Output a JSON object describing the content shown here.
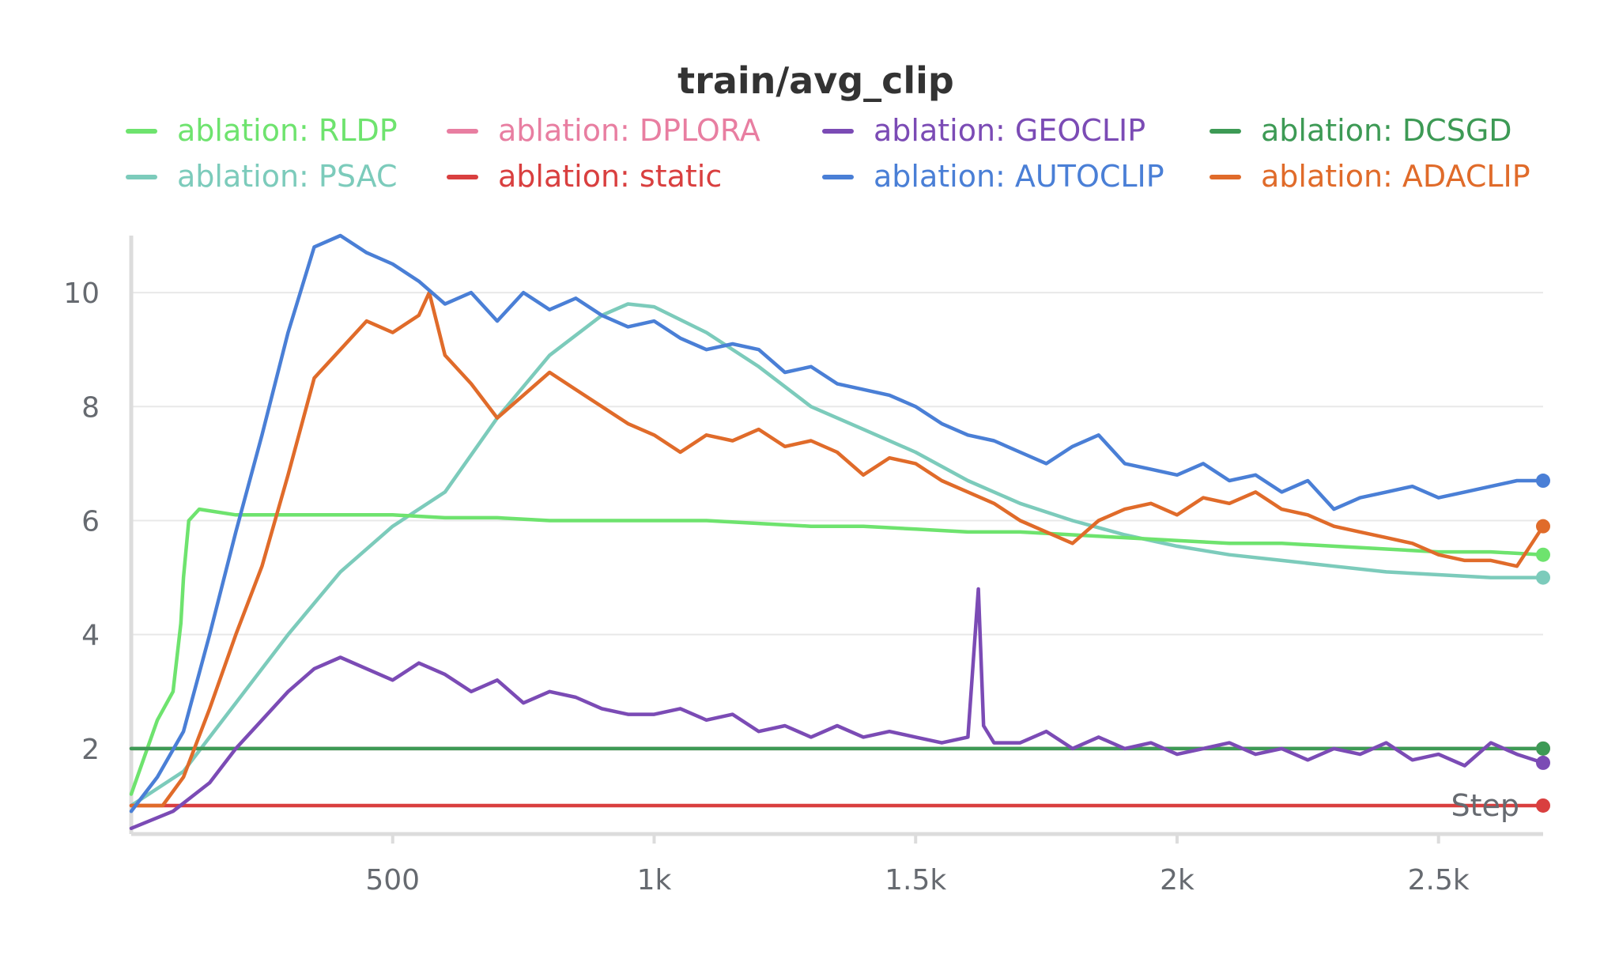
{
  "chart_data": {
    "type": "line",
    "title": "train/avg_clip",
    "xlabel": "Step",
    "ylabel": "",
    "xlim": [
      0,
      2700
    ],
    "ylim": [
      0.5,
      11
    ],
    "xticks": [
      500,
      1000,
      1500,
      2000,
      2500
    ],
    "xtick_labels": [
      "500",
      "1k",
      "1.5k",
      "2k",
      "2.5k"
    ],
    "yticks": [
      2,
      4,
      6,
      8,
      10
    ],
    "ytick_labels": [
      "2",
      "4",
      "6",
      "8",
      "10"
    ],
    "legend_position": "top",
    "series": [
      {
        "name": "ablation: RLDP",
        "color": "#6ee36e",
        "x": [
          0,
          50,
          80,
          95,
          100,
          110,
          130,
          200,
          300,
          400,
          500,
          600,
          700,
          800,
          900,
          1000,
          1100,
          1200,
          1300,
          1400,
          1500,
          1600,
          1700,
          1800,
          1900,
          2000,
          2100,
          2200,
          2300,
          2400,
          2500,
          2600,
          2700
        ],
        "y": [
          1.2,
          2.5,
          3.0,
          4.2,
          5.0,
          6.0,
          6.2,
          6.1,
          6.1,
          6.1,
          6.1,
          6.05,
          6.05,
          6.0,
          6.0,
          6.0,
          6.0,
          5.95,
          5.9,
          5.9,
          5.85,
          5.8,
          5.8,
          5.75,
          5.7,
          5.65,
          5.6,
          5.6,
          5.55,
          5.5,
          5.45,
          5.45,
          5.4
        ]
      },
      {
        "name": "ablation: DPLORA",
        "color": "#e87ea1",
        "x": [
          0,
          2700
        ],
        "y": [
          2.0,
          2.0
        ]
      },
      {
        "name": "ablation: GEOCLIP",
        "color": "#7b4bb5",
        "x": [
          0,
          80,
          150,
          200,
          250,
          300,
          350,
          400,
          450,
          500,
          550,
          600,
          650,
          700,
          750,
          800,
          850,
          900,
          950,
          1000,
          1050,
          1100,
          1150,
          1200,
          1250,
          1300,
          1350,
          1400,
          1450,
          1500,
          1550,
          1600,
          1620,
          1630,
          1650,
          1700,
          1750,
          1800,
          1850,
          1900,
          1950,
          2000,
          2050,
          2100,
          2150,
          2200,
          2250,
          2300,
          2350,
          2400,
          2450,
          2500,
          2550,
          2600,
          2650,
          2700
        ],
        "y": [
          0.6,
          0.9,
          1.4,
          2.0,
          2.5,
          3.0,
          3.4,
          3.6,
          3.4,
          3.2,
          3.5,
          3.3,
          3.0,
          3.2,
          2.8,
          3.0,
          2.9,
          2.7,
          2.6,
          2.6,
          2.7,
          2.5,
          2.6,
          2.3,
          2.4,
          2.2,
          2.4,
          2.2,
          2.3,
          2.2,
          2.1,
          2.2,
          4.8,
          2.4,
          2.1,
          2.1,
          2.3,
          2.0,
          2.2,
          2.0,
          2.1,
          1.9,
          2.0,
          2.1,
          1.9,
          2.0,
          1.8,
          2.0,
          1.9,
          2.1,
          1.8,
          1.9,
          1.7,
          2.1,
          1.9,
          1.75
        ]
      },
      {
        "name": "ablation: DCSGD",
        "color": "#3d9a55",
        "x": [
          0,
          2700
        ],
        "y": [
          2.0,
          2.0
        ]
      },
      {
        "name": "ablation: PSAC",
        "color": "#7ccbbb",
        "x": [
          0,
          100,
          200,
          300,
          400,
          500,
          600,
          700,
          800,
          900,
          950,
          1000,
          1100,
          1200,
          1300,
          1400,
          1500,
          1600,
          1700,
          1800,
          1900,
          2000,
          2100,
          2200,
          2300,
          2400,
          2500,
          2600,
          2700
        ],
        "y": [
          1.0,
          1.6,
          2.8,
          4.0,
          5.1,
          5.9,
          6.5,
          7.8,
          8.9,
          9.6,
          9.8,
          9.75,
          9.3,
          8.7,
          8.0,
          7.6,
          7.2,
          6.7,
          6.3,
          6.0,
          5.75,
          5.55,
          5.4,
          5.3,
          5.2,
          5.1,
          5.05,
          5.0,
          5.0
        ]
      },
      {
        "name": "ablation: static",
        "color": "#d93f3f",
        "x": [
          0,
          2700
        ],
        "y": [
          1.0,
          1.0
        ]
      },
      {
        "name": "ablation: AUTOCLIP",
        "color": "#4a7fd6",
        "x": [
          0,
          50,
          100,
          150,
          200,
          250,
          300,
          350,
          400,
          450,
          500,
          550,
          600,
          650,
          700,
          750,
          800,
          850,
          900,
          950,
          1000,
          1050,
          1100,
          1150,
          1200,
          1250,
          1300,
          1350,
          1400,
          1450,
          1500,
          1550,
          1600,
          1650,
          1700,
          1750,
          1800,
          1850,
          1900,
          1950,
          2000,
          2050,
          2100,
          2150,
          2200,
          2250,
          2300,
          2350,
          2400,
          2450,
          2500,
          2550,
          2600,
          2650,
          2700
        ],
        "y": [
          0.9,
          1.5,
          2.3,
          4.0,
          5.8,
          7.5,
          9.3,
          10.8,
          11.0,
          10.7,
          10.5,
          10.2,
          9.8,
          10.0,
          9.5,
          10.0,
          9.7,
          9.9,
          9.6,
          9.4,
          9.5,
          9.2,
          9.0,
          9.1,
          9.0,
          8.6,
          8.7,
          8.4,
          8.3,
          8.2,
          8.0,
          7.7,
          7.5,
          7.4,
          7.2,
          7.0,
          7.3,
          7.5,
          7.0,
          6.9,
          6.8,
          7.0,
          6.7,
          6.8,
          6.5,
          6.7,
          6.2,
          6.4,
          6.5,
          6.6,
          6.4,
          6.5,
          6.6,
          6.7,
          6.7
        ]
      },
      {
        "name": "ablation: ADACLIP",
        "color": "#e06b2a",
        "x": [
          0,
          60,
          100,
          150,
          200,
          250,
          300,
          350,
          400,
          450,
          500,
          550,
          570,
          600,
          650,
          700,
          750,
          800,
          850,
          900,
          950,
          1000,
          1050,
          1100,
          1150,
          1200,
          1250,
          1300,
          1350,
          1400,
          1450,
          1500,
          1550,
          1600,
          1650,
          1700,
          1750,
          1800,
          1850,
          1900,
          1950,
          2000,
          2050,
          2100,
          2150,
          2200,
          2250,
          2300,
          2350,
          2400,
          2450,
          2500,
          2550,
          2600,
          2650,
          2700
        ],
        "y": [
          1.0,
          1.0,
          1.5,
          2.7,
          4.0,
          5.2,
          6.8,
          8.5,
          9.0,
          9.5,
          9.3,
          9.6,
          10.0,
          8.9,
          8.4,
          7.8,
          8.2,
          8.6,
          8.3,
          8.0,
          7.7,
          7.5,
          7.2,
          7.5,
          7.4,
          7.6,
          7.3,
          7.4,
          7.2,
          6.8,
          7.1,
          7.0,
          6.7,
          6.5,
          6.3,
          6.0,
          5.8,
          5.6,
          6.0,
          6.2,
          6.3,
          6.1,
          6.4,
          6.3,
          6.5,
          6.2,
          6.1,
          5.9,
          5.8,
          5.7,
          5.6,
          5.4,
          5.3,
          5.3,
          5.2,
          5.9
        ]
      }
    ]
  }
}
